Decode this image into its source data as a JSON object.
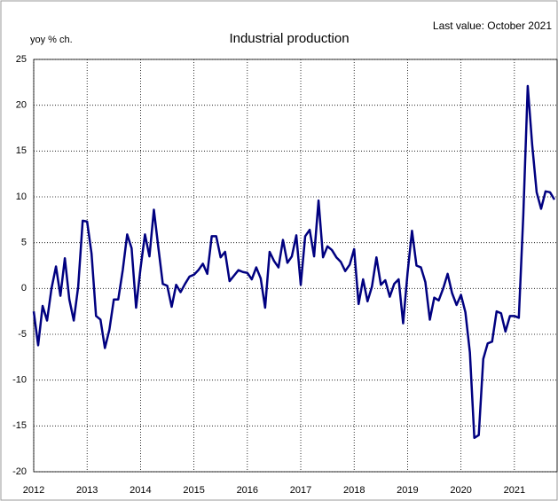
{
  "chart_data": {
    "type": "line",
    "title": "Industrial production",
    "y_label": "yoy % ch.",
    "annotation": "Last value: October 2021",
    "x": [
      2012.0,
      2012.083,
      2012.167,
      2012.25,
      2012.333,
      2012.417,
      2012.5,
      2012.583,
      2012.667,
      2012.75,
      2012.833,
      2012.917,
      2013.0,
      2013.083,
      2013.167,
      2013.25,
      2013.333,
      2013.417,
      2013.5,
      2013.583,
      2013.667,
      2013.75,
      2013.833,
      2013.917,
      2014.0,
      2014.083,
      2014.167,
      2014.25,
      2014.333,
      2014.417,
      2014.5,
      2014.583,
      2014.667,
      2014.75,
      2014.833,
      2014.917,
      2015.0,
      2015.083,
      2015.167,
      2015.25,
      2015.333,
      2015.417,
      2015.5,
      2015.583,
      2015.667,
      2015.75,
      2015.833,
      2015.917,
      2016.0,
      2016.083,
      2016.167,
      2016.25,
      2016.333,
      2016.417,
      2016.5,
      2016.583,
      2016.667,
      2016.75,
      2016.833,
      2016.917,
      2017.0,
      2017.083,
      2017.167,
      2017.25,
      2017.333,
      2017.417,
      2017.5,
      2017.583,
      2017.667,
      2017.75,
      2017.833,
      2017.917,
      2018.0,
      2018.083,
      2018.167,
      2018.25,
      2018.333,
      2018.417,
      2018.5,
      2018.583,
      2018.667,
      2018.75,
      2018.833,
      2018.917,
      2019.0,
      2019.083,
      2019.167,
      2019.25,
      2019.333,
      2019.417,
      2019.5,
      2019.583,
      2019.667,
      2019.75,
      2019.833,
      2019.917,
      2020.0,
      2020.083,
      2020.167,
      2020.25,
      2020.333,
      2020.417,
      2020.5,
      2020.583,
      2020.667,
      2020.75,
      2020.833,
      2020.917,
      2021.0,
      2021.083,
      2021.167,
      2021.25,
      2021.333,
      2021.417,
      2021.5,
      2021.583,
      2021.667,
      2021.75
    ],
    "series": [
      {
        "name": "Industrial production",
        "color": "#000080",
        "values": [
          -2.5,
          -6.2,
          -1.9,
          -3.5,
          0,
          2.4,
          -0.8,
          3.3,
          -1.2,
          -3.5,
          0.2,
          7.4,
          7.3,
          3.8,
          -3,
          -3.4,
          -6.5,
          -4.5,
          -1.2,
          -1.2,
          2,
          5.9,
          4.4,
          -2.1,
          2.2,
          5.9,
          3.5,
          8.6,
          4.5,
          0.5,
          0.3,
          -2,
          0.4,
          -0.4,
          0.5,
          1.3,
          1.5,
          2,
          2.7,
          1.6,
          5.7,
          5.7,
          3.4,
          4,
          0.8,
          1.4,
          2,
          1.8,
          1.7,
          1,
          2.3,
          1.1,
          -2.1,
          4,
          3,
          2.3,
          5.3,
          2.8,
          3.5,
          5.8,
          0.4,
          5.7,
          6.4,
          3.5,
          9.6,
          3.4,
          4.6,
          4.2,
          3.4,
          2.9,
          1.9,
          2.6,
          4.3,
          -1.7,
          1,
          -1.4,
          0.2,
          3.4,
          0.4,
          0.9,
          -0.9,
          0.5,
          1,
          -3.8,
          1.7,
          6.3,
          2.5,
          2.3,
          0.7,
          -3.4,
          -1,
          -1.3,
          0,
          1.6,
          -0.5,
          -1.8,
          -0.7,
          -2.6,
          -7,
          -16.3,
          -16,
          -7.7,
          -6,
          -5.8,
          -2.5,
          -2.7,
          -4.7,
          -3,
          -3,
          -3.2,
          8,
          22.1,
          15.7,
          10.5,
          8.7,
          10.6,
          10.5,
          9.7
        ]
      }
    ],
    "xlim": [
      2012,
      2021.8
    ],
    "xticks": [
      2012,
      2013,
      2014,
      2015,
      2016,
      2017,
      2018,
      2019,
      2020,
      2021
    ],
    "ylim": [
      -20,
      25
    ],
    "yticks": [
      -20,
      -15,
      -10,
      -5,
      0,
      5,
      10,
      15,
      20,
      25
    ],
    "grid": true
  }
}
